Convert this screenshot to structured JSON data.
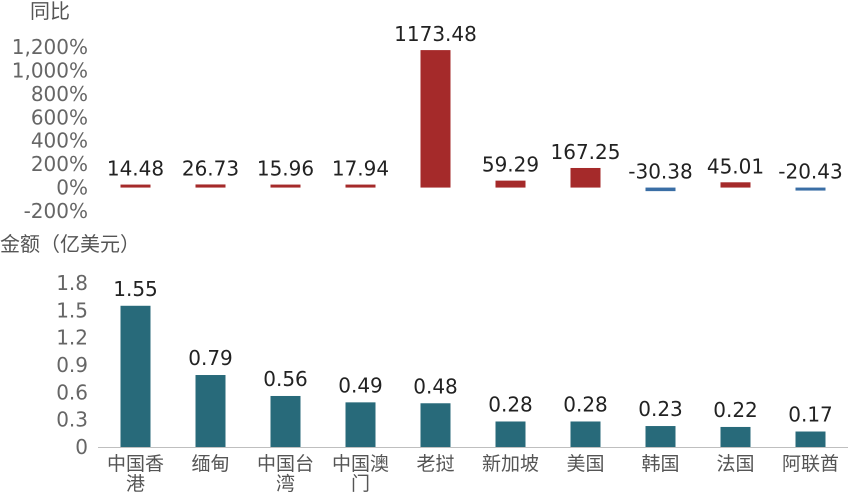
{
  "chart_data": [
    {
      "type": "bar",
      "ylabel": "同比",
      "categories": [
        "中国香港",
        "缅甸",
        "中国台湾",
        "中国澳门",
        "老挝",
        "新加坡",
        "美国",
        "韩国",
        "法国",
        "阿联酋"
      ],
      "values": [
        14.48,
        26.73,
        15.96,
        17.94,
        1173.48,
        59.29,
        167.25,
        -30.38,
        45.01,
        -20.43
      ],
      "value_labels": [
        "14.48",
        "26.73",
        "15.96",
        "17.94",
        "1173.48",
        "59.29",
        "167.25",
        "-30.38",
        "45.01",
        "-20.43"
      ],
      "unit": "%",
      "ylim": [
        -200,
        1200
      ],
      "yticks": [
        "1,200%",
        "1,000%",
        "800%",
        "600%",
        "400%",
        "200%",
        "0%",
        "-200%"
      ],
      "positive_color": "#a52a2a",
      "negative_color": "#3a6ea5",
      "grid": false
    },
    {
      "type": "bar",
      "ylabel": "金额（亿美元）",
      "categories": [
        "中国香港",
        "缅甸",
        "中国台湾",
        "中国澳门",
        "老挝",
        "新加坡",
        "美国",
        "韩国",
        "法国",
        "阿联酋"
      ],
      "category_lines": [
        [
          "中国香",
          "港"
        ],
        [
          "缅甸"
        ],
        [
          "中国台",
          "湾"
        ],
        [
          "中国澳",
          "门"
        ],
        [
          "老挝"
        ],
        [
          "新加坡"
        ],
        [
          "美国"
        ],
        [
          "韩国"
        ],
        [
          "法国"
        ],
        [
          "阿联酋"
        ]
      ],
      "values": [
        1.55,
        0.79,
        0.56,
        0.49,
        0.48,
        0.28,
        0.28,
        0.23,
        0.22,
        0.17
      ],
      "value_labels": [
        "1.55",
        "0.79",
        "0.56",
        "0.49",
        "0.48",
        "0.28",
        "0.28",
        "0.23",
        "0.22",
        "0.17"
      ],
      "ylim": [
        0,
        1.8
      ],
      "yticks": [
        "1.8",
        "1.5",
        "1.2",
        "0.9",
        "0.6",
        "0.3",
        "0"
      ],
      "color": "#286a7a",
      "grid": false
    }
  ]
}
